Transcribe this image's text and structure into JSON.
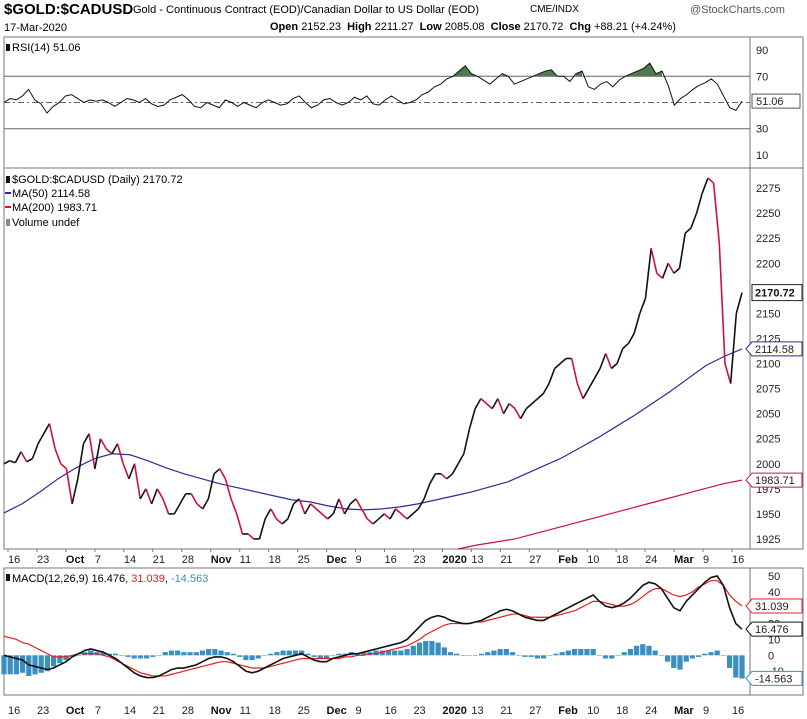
{
  "header": {
    "symbol": "$GOLD:$CADUSD",
    "description": "Gold - Continuous Contract (EOD)/Canadian Dollar to US Dollar (EOD)",
    "exchange": "CME/INDX",
    "brand": "@StockCharts.com",
    "date": "17-Mar-2020",
    "open_label": "Open",
    "open": "2152.23",
    "high_label": "High",
    "high": "2211.27",
    "low_label": "Low",
    "low": "2085.08",
    "close_label": "Close",
    "close": "2170.72",
    "chg_label": "Chg",
    "chg": "+88.21 (+4.24%)"
  },
  "colors": {
    "price": "#111111",
    "ma50": "#2b2b9a",
    "ma200": "#d0103a",
    "macd": "#111111",
    "signal": "#e02020",
    "hist": "#3a8fc0",
    "rsi_fill": "#4e7a4e"
  },
  "x_labels": [
    {
      "t": "16",
      "b": false
    },
    {
      "t": "23",
      "b": false
    },
    {
      "t": "Oct",
      "b": true
    },
    {
      "t": "7",
      "b": false
    },
    {
      "t": "14",
      "b": false
    },
    {
      "t": "21",
      "b": false
    },
    {
      "t": "28",
      "b": false
    },
    {
      "t": "Nov",
      "b": true
    },
    {
      "t": "11",
      "b": false
    },
    {
      "t": "18",
      "b": false
    },
    {
      "t": "25",
      "b": false
    },
    {
      "t": "Dec",
      "b": true
    },
    {
      "t": "9",
      "b": false
    },
    {
      "t": "16",
      "b": false
    },
    {
      "t": "23",
      "b": false
    },
    {
      "t": "2020",
      "b": true
    },
    {
      "t": "13",
      "b": false
    },
    {
      "t": "21",
      "b": false
    },
    {
      "t": "27",
      "b": false
    },
    {
      "t": "Feb",
      "b": true
    },
    {
      "t": "10",
      "b": false
    },
    {
      "t": "18",
      "b": false
    },
    {
      "t": "24",
      "b": false
    },
    {
      "t": "Mar",
      "b": true
    },
    {
      "t": "9",
      "b": false
    },
    {
      "t": "16",
      "b": false
    }
  ],
  "chart_data": [
    {
      "type": "line",
      "title": "RSI(14) 51.06",
      "label": "RSI(14)",
      "value": "51.06",
      "ylim": [
        0,
        100
      ],
      "ticks": [
        10,
        30,
        50,
        70,
        90
      ],
      "overbought": 70,
      "oversold": 30,
      "series": [
        {
          "name": "RSI(14)",
          "values": [
            50,
            53,
            52,
            55,
            60,
            52,
            49,
            42,
            47,
            50,
            55,
            56,
            53,
            50,
            52,
            51,
            52,
            50,
            47,
            50,
            53,
            52,
            50,
            53,
            49,
            47,
            48,
            52,
            54,
            56,
            52,
            47,
            46,
            50,
            48,
            46,
            52,
            50,
            47,
            50,
            48,
            46,
            50,
            52,
            50,
            48,
            49,
            53,
            55,
            50,
            46,
            48,
            52,
            53,
            50,
            48,
            50,
            54,
            52,
            55,
            49,
            48,
            52,
            55,
            52,
            49,
            50,
            52,
            56,
            58,
            62,
            64,
            68,
            70,
            74,
            78,
            72,
            70,
            67,
            64,
            68,
            72,
            70,
            64,
            66,
            68,
            70,
            72,
            74,
            75,
            70,
            70,
            66,
            72,
            74,
            62,
            60,
            64,
            66,
            62,
            67,
            70,
            72,
            74,
            76,
            80,
            72,
            74,
            63,
            48,
            53,
            56,
            60,
            63,
            65,
            68,
            64,
            55,
            46,
            44,
            51
          ]
        }
      ]
    },
    {
      "type": "line",
      "title": "$GOLD:$CADUSD (Daily) 2170.72",
      "legend": [
        {
          "name": "$GOLD:$CADUSD (Daily)",
          "value": "2170.72"
        },
        {
          "name": "MA(50)",
          "value": "2114.58"
        },
        {
          "name": "MA(200)",
          "value": "1983.71"
        },
        {
          "name": "Volume undef",
          "value": ""
        }
      ],
      "ylim": [
        1915,
        2295
      ],
      "ticks": [
        1925,
        1950,
        1975,
        2000,
        2025,
        2050,
        2075,
        2100,
        2125,
        2150,
        2175,
        2200,
        2225,
        2250,
        2275
      ],
      "last_close_tag": "2170.72",
      "ma50_tag": "2114.58",
      "ma200_tag": "1983.71",
      "series": [
        {
          "name": "$GOLD:$CADUSD",
          "values": [
            2000,
            2003,
            2001,
            2012,
            2002,
            2005,
            2020,
            2030,
            2040,
            2015,
            2000,
            1995,
            1960,
            1985,
            2020,
            2030,
            1995,
            2025,
            2015,
            2010,
            2020,
            2000,
            1985,
            2000,
            1965,
            1975,
            1960,
            1975,
            1965,
            1950,
            1950,
            1960,
            1970,
            1970,
            1960,
            1955,
            1965,
            1990,
            1995,
            1985,
            1965,
            1950,
            1930,
            1930,
            1925,
            1925,
            1945,
            1955,
            1945,
            1940,
            1945,
            1960,
            1965,
            1950,
            1960,
            1955,
            1950,
            1945,
            1950,
            1965,
            1950,
            1960,
            1965,
            1955,
            1945,
            1940,
            1945,
            1950,
            1945,
            1955,
            1950,
            1945,
            1950,
            1955,
            1965,
            1980,
            1990,
            1990,
            1985,
            1990,
            2000,
            2010,
            2035,
            2055,
            2065,
            2060,
            2055,
            2065,
            2050,
            2060,
            2055,
            2045,
            2055,
            2060,
            2065,
            2070,
            2080,
            2095,
            2100,
            2105,
            2105,
            2080,
            2065,
            2075,
            2085,
            2095,
            2110,
            2095,
            2100,
            2115,
            2120,
            2130,
            2150,
            2165,
            2215,
            2190,
            2185,
            2200,
            2190,
            2195,
            2230,
            2235,
            2250,
            2270,
            2285,
            2280,
            2220,
            2100,
            2080,
            2150,
            2170.72
          ]
        },
        {
          "name": "MA(50)",
          "values": [
            1951,
            1960,
            1972,
            1985,
            1996,
            2005,
            2010,
            2009,
            2003,
            1996,
            1990,
            1985,
            1980,
            1976,
            1972,
            1968,
            1964,
            1962,
            1958,
            1955,
            1954,
            1955,
            1957,
            1960,
            1964,
            1968,
            1972,
            1977,
            1982,
            1990,
            1998,
            2006,
            2016,
            2026,
            2037,
            2048,
            2060,
            2072,
            2085,
            2098,
            2107,
            2114.58
          ]
        },
        {
          "name": "MA(200)",
          "values": [
            1915,
            1919,
            1922,
            1925,
            1930,
            1935,
            1940,
            1945,
            1950,
            1955,
            1960,
            1965,
            1970,
            1975,
            1980,
            1983.71
          ]
        }
      ]
    },
    {
      "type": "line",
      "title": "MACD(12,26,9) 16.476, 31.039, -14.563",
      "label": "MACD(12,26,9)",
      "macd_value": "16.476",
      "signal_value": "31.039",
      "hist_value": "-14.563",
      "ylim": [
        -25,
        55
      ],
      "ticks": [
        -10,
        0,
        10,
        20,
        30,
        40,
        50
      ],
      "macd_tag": "16.476",
      "signal_tag": "31.039",
      "hist_tag": "-14.563",
      "series": [
        {
          "name": "MACD",
          "values": [
            0,
            -1,
            -2,
            -3,
            -6,
            -7,
            -8,
            -9,
            -8,
            -6,
            -4,
            -1,
            1,
            3,
            4,
            3,
            2,
            0,
            -2,
            -5,
            -8,
            -11,
            -13,
            -14,
            -14,
            -13,
            -11,
            -9,
            -8,
            -8,
            -7,
            -6,
            -4,
            -2,
            -1,
            -1,
            -2,
            -4,
            -7,
            -10,
            -11,
            -10,
            -8,
            -6,
            -4,
            -2,
            -1,
            0,
            1,
            -1,
            -3,
            -4,
            -4,
            -2,
            -1,
            0,
            1,
            1,
            2,
            3,
            4,
            5,
            6,
            7,
            8,
            10,
            14,
            18,
            22,
            24,
            25,
            24,
            22,
            21,
            20,
            20,
            21,
            22,
            24,
            26,
            28,
            29,
            28,
            26,
            24,
            23,
            22,
            22,
            24,
            26,
            28,
            30,
            32,
            34,
            36,
            38,
            34,
            31,
            30,
            31,
            33,
            36,
            40,
            44,
            46,
            45,
            42,
            36,
            30,
            28,
            34,
            38,
            42,
            46,
            49,
            50,
            44,
            30,
            20,
            16.476
          ]
        },
        {
          "name": "Signal",
          "values": [
            12,
            11,
            10,
            8,
            7,
            5,
            3,
            1,
            -1,
            -1,
            -1,
            0,
            1,
            1,
            1,
            1,
            0,
            -1,
            -3,
            -5,
            -7,
            -9,
            -11,
            -12,
            -13,
            -13,
            -13,
            -12,
            -11,
            -10,
            -9,
            -8,
            -7,
            -6,
            -5,
            -4,
            -4,
            -5,
            -6,
            -7,
            -8,
            -8,
            -8,
            -7,
            -6,
            -5,
            -4,
            -3,
            -2,
            -2,
            -2,
            -2,
            -2,
            -2,
            -2,
            -1,
            -1,
            0,
            0,
            1,
            1,
            2,
            3,
            4,
            5,
            6,
            8,
            10,
            13,
            15,
            17,
            19,
            20,
            20,
            20,
            20,
            21,
            21,
            22,
            23,
            24,
            25,
            26,
            26,
            25,
            24,
            24,
            24,
            24,
            25,
            26,
            27,
            28,
            30,
            32,
            34,
            34,
            33,
            32,
            31,
            31,
            32,
            34,
            37,
            40,
            42,
            42,
            40,
            38,
            37,
            38,
            40,
            43,
            45,
            47,
            47,
            44,
            38,
            34,
            31.039
          ]
        },
        {
          "name": "Histogram",
          "values": [
            -12,
            -12,
            -12,
            -11,
            -13,
            -12,
            -11,
            -10,
            -7,
            -5,
            -3,
            -1,
            0,
            2,
            3,
            2,
            2,
            1,
            1,
            0,
            -1,
            -2,
            -2,
            -2,
            -1,
            0,
            2,
            3,
            3,
            2,
            2,
            2,
            3,
            4,
            4,
            3,
            2,
            1,
            -1,
            -3,
            -3,
            -2,
            0,
            1,
            2,
            3,
            3,
            3,
            3,
            1,
            -1,
            -2,
            -2,
            0,
            1,
            1,
            2,
            1,
            2,
            2,
            3,
            3,
            3,
            3,
            3,
            4,
            6,
            8,
            9,
            9,
            8,
            5,
            2,
            1,
            0,
            0,
            0,
            1,
            2,
            3,
            4,
            4,
            2,
            0,
            -1,
            -1,
            -2,
            -2,
            0,
            1,
            2,
            3,
            4,
            4,
            4,
            4,
            0,
            -2,
            -2,
            0,
            2,
            4,
            6,
            7,
            6,
            3,
            0,
            -4,
            -8,
            -9,
            -4,
            -2,
            -1,
            1,
            2,
            3,
            0,
            -8,
            -14,
            -14.563
          ]
        }
      ]
    }
  ]
}
